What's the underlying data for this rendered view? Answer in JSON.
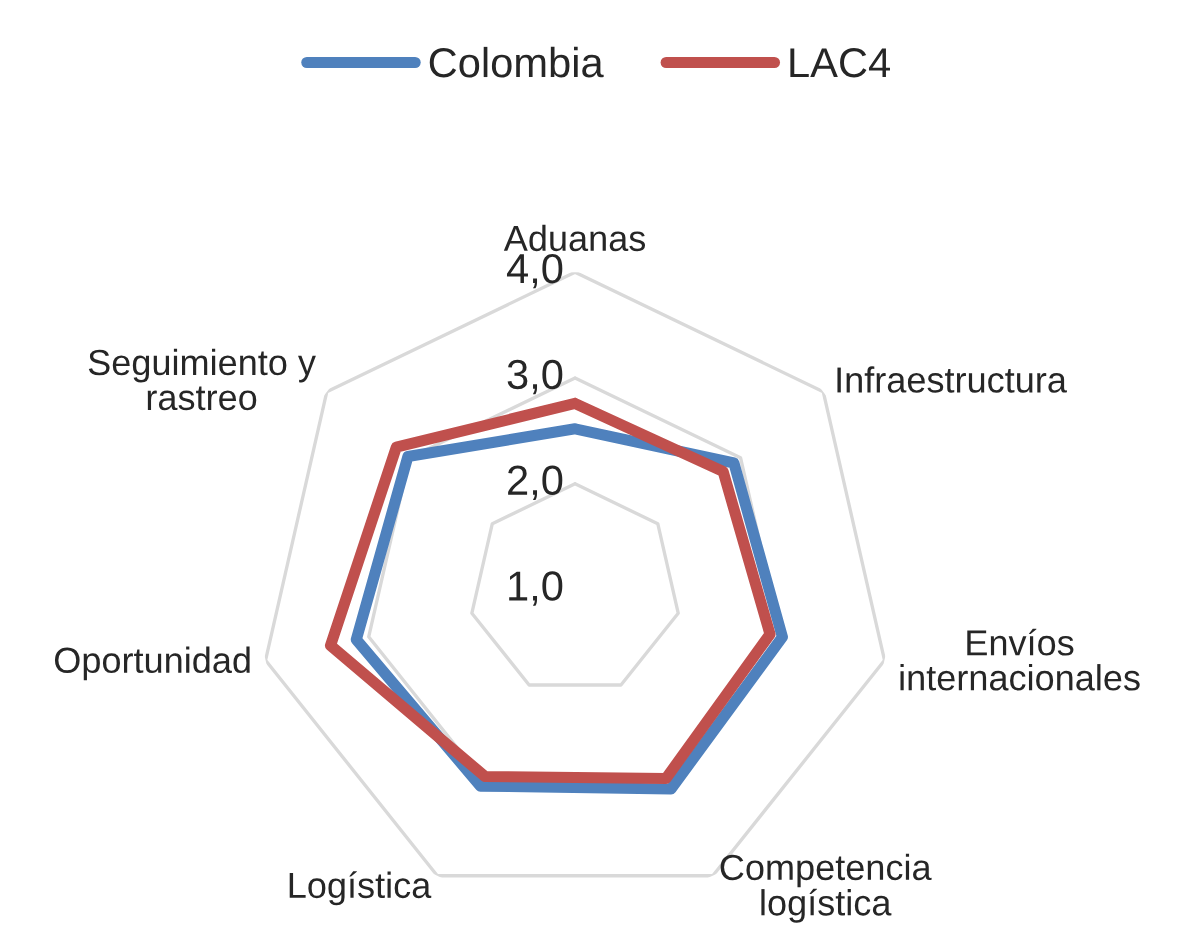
{
  "chart_data": {
    "type": "radar",
    "categories": [
      "Aduanas",
      "Infraestructura",
      "Envíos\ninternacionales",
      "Competencia\nlogística",
      "Logística",
      "Oportunidad",
      "Seguimiento y\nrastreo"
    ],
    "series": [
      {
        "name": "Colombia",
        "color": "#4f81bd",
        "values": [
          2.52,
          2.92,
          3.01,
          3.09,
          3.06,
          3.12,
          3.02
        ]
      },
      {
        "name": "LAC4",
        "color": "#c0504d",
        "values": [
          2.76,
          2.79,
          2.89,
          2.98,
          2.96,
          3.37,
          3.16
        ]
      }
    ],
    "ylim": [
      1,
      4
    ],
    "yticks": [
      {
        "value": 1,
        "label": "1,0"
      },
      {
        "value": 2,
        "label": "2,0"
      },
      {
        "value": 3,
        "label": "3,0"
      },
      {
        "value": 4,
        "label": "4,0"
      }
    ],
    "grid": true,
    "legend": "top"
  }
}
